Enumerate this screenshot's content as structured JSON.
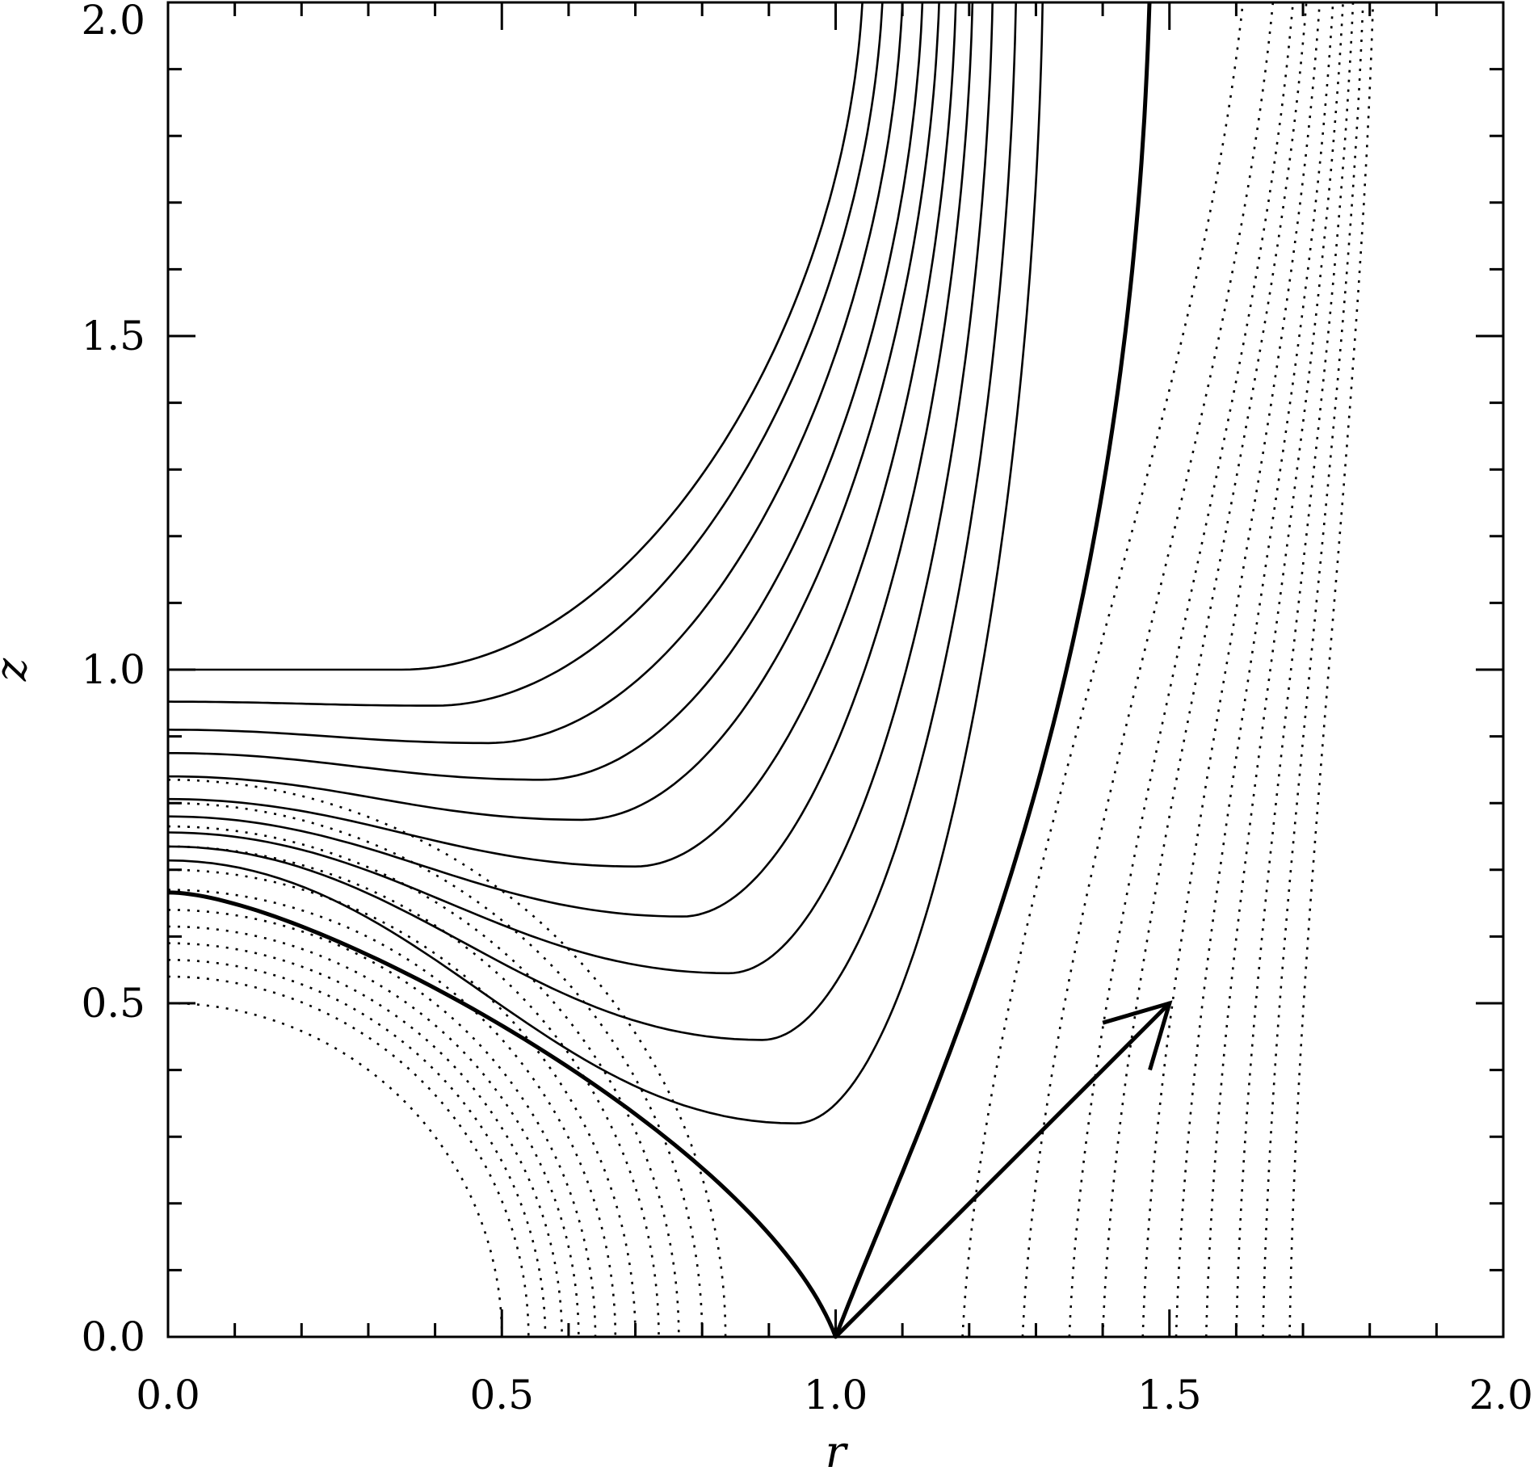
{
  "chart_data": {
    "type": "line",
    "xlabel": "r",
    "ylabel": "z",
    "xlim": [
      0,
      2
    ],
    "ylim": [
      0,
      2
    ],
    "x_ticks": [
      "0.0",
      "0.5",
      "1.0",
      "1.5",
      "2.0"
    ],
    "y_ticks": [
      "0.0",
      "0.5",
      "1.0",
      "1.5",
      "2.0"
    ],
    "grid": false,
    "line_color": "#000000",
    "solid_curves": [
      {
        "z_axis": 1.0,
        "min": [
          0.35,
          1.0
        ],
        "z_top": 2.0,
        "r_top": 1.04
      },
      {
        "z_axis": 0.952,
        "min": [
          0.4,
          0.946
        ],
        "z_top": 2.0,
        "r_top": 1.07
      },
      {
        "z_axis": 0.91,
        "min": [
          0.48,
          0.89
        ],
        "z_top": 2.0,
        "r_top": 1.1
      },
      {
        "z_axis": 0.875,
        "min": [
          0.56,
          0.835
        ],
        "z_top": 2.0,
        "r_top": 1.13
      },
      {
        "z_axis": 0.84,
        "min": [
          0.62,
          0.775
        ],
        "z_top": 2.0,
        "r_top": 1.155
      },
      {
        "z_axis": 0.806,
        "min": [
          0.7,
          0.705
        ],
        "z_top": 2.0,
        "r_top": 1.18
      },
      {
        "z_axis": 0.78,
        "min": [
          0.77,
          0.63
        ],
        "z_top": 2.0,
        "r_top": 1.205
      },
      {
        "z_axis": 0.756,
        "min": [
          0.84,
          0.545
        ],
        "z_top": 2.0,
        "r_top": 1.235
      },
      {
        "z_axis": 0.735,
        "min": [
          0.89,
          0.445
        ],
        "z_top": 2.0,
        "r_top": 1.27
      },
      {
        "z_axis": 0.714,
        "min": [
          0.94,
          0.32
        ],
        "z_top": 2.0,
        "r_top": 1.31
      }
    ],
    "separatrix": {
      "z_axis": 0.666,
      "saddle": [
        1.0,
        0.0
      ],
      "z_top": 2.0,
      "r_top": 1.47
    },
    "dotted_inner_radii": [
      0.5,
      0.54,
      0.565,
      0.59,
      0.615,
      0.64,
      0.67,
      0.7,
      0.735,
      0.765,
      0.8,
      0.835
    ],
    "dotted_outer_curves": [
      {
        "r_bottom": 1.19,
        "r_top": 1.61
      },
      {
        "r_bottom": 1.28,
        "r_top": 1.655
      },
      {
        "r_bottom": 1.35,
        "r_top": 1.685
      },
      {
        "r_bottom": 1.4,
        "r_top": 1.705
      },
      {
        "r_bottom": 1.46,
        "r_top": 1.725
      },
      {
        "r_bottom": 1.51,
        "r_top": 1.745
      },
      {
        "r_bottom": 1.555,
        "r_top": 1.76
      },
      {
        "r_bottom": 1.6,
        "r_top": 1.775
      },
      {
        "r_bottom": 1.64,
        "r_top": 1.79
      },
      {
        "r_bottom": 1.68,
        "r_top": 1.805
      }
    ],
    "arrow": {
      "from": [
        1.0,
        0.0
      ],
      "to": [
        1.5,
        0.5
      ]
    }
  }
}
